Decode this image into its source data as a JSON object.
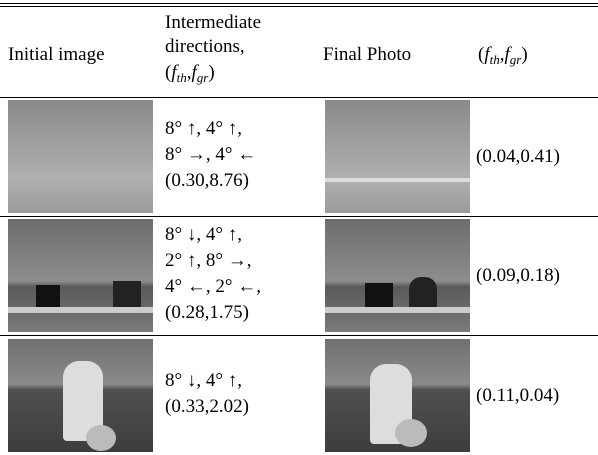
{
  "table": {
    "header": {
      "initial": "Initial image",
      "intermediate": [
        "Intermediate",
        "directions,"
      ],
      "math": [
        "(",
        "f",
        "th",
        ",",
        "f",
        "gr",
        ")"
      ],
      "final": "Final Photo"
    },
    "rows": [
      {
        "directions": [
          "8° ↑, 4° ↑,",
          "8° →, 4° ←",
          "(0.30,8.76)"
        ],
        "score": "(0.04,0.41)"
      },
      {
        "directions": [
          "8° ↓, 4° ↑,",
          "2° ↑, 8° →,",
          "4° ←, 2° ←,",
          "(0.28,1.75)"
        ],
        "score": "(0.09,0.18)"
      },
      {
        "directions": [
          "8° ↓, 4° ↑,",
          "(0.33,2.02)"
        ],
        "score": "(0.11,0.04)"
      }
    ]
  }
}
